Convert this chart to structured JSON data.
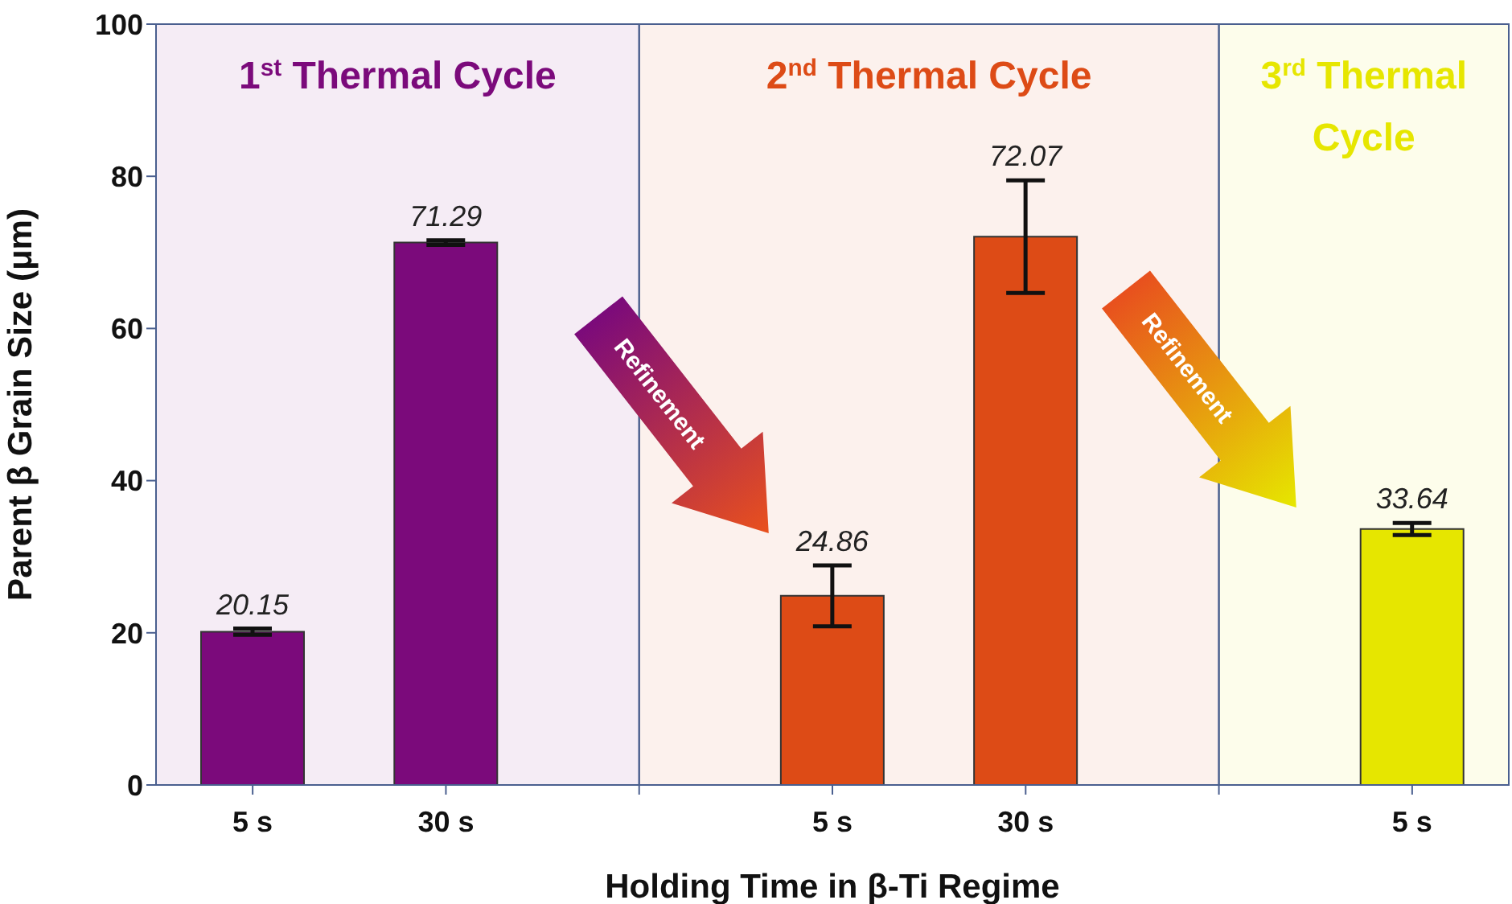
{
  "chart_data": {
    "type": "bar",
    "categories": [
      "5 s",
      "30 s",
      null,
      "5 s",
      "30 s",
      null,
      "5 s"
    ],
    "values": [
      20.15,
      71.29,
      null,
      24.86,
      72.07,
      null,
      33.64
    ],
    "errors": [
      0.4,
      0.3,
      null,
      4,
      7.4,
      null,
      0.8
    ],
    "colors": [
      "#7b0a7b",
      "#7b0a7b",
      null,
      "#dd4b16",
      "#dd4b16",
      null,
      "#e6e600"
    ],
    "data_labels": true,
    "ylim": [
      0,
      100
    ],
    "yticks": [
      0,
      20,
      40,
      60,
      80,
      100
    ],
    "xlabel": "Holding Time in β-Ti Regime",
    "ylabel": "Parent β Grain Size (μm)",
    "annotations": [
      "1$^{st}$ Thermal Cycle",
      "2$^{nd}$ Thermal Cycle",
      "3$^{rd}$ Thermal Cycle",
      "Refinement",
      "Refinement"
    ]
  }
}
